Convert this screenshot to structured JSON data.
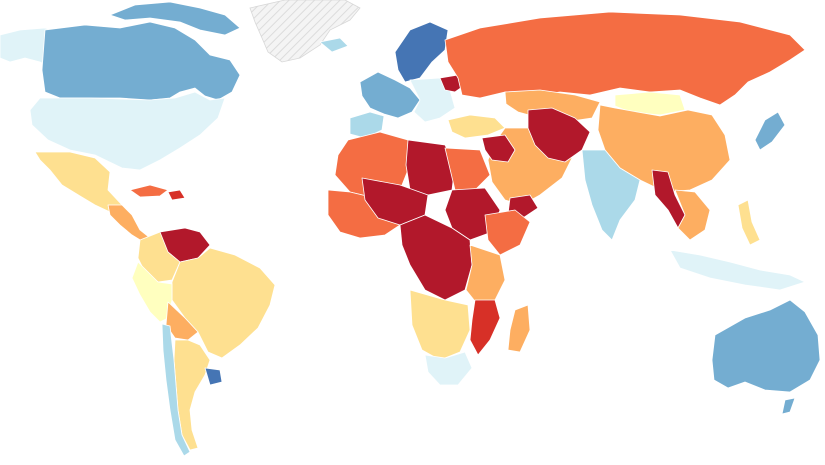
{
  "palette": {
    "c1": "#b2182b",
    "c2": "#d73027",
    "c3": "#f46d43",
    "c4": "#fdae61",
    "c5": "#fee090",
    "c6": "#ffffbf",
    "c7": "#e0f3f8",
    "c8": "#abd9e9",
    "c9": "#74add1",
    "c10": "#4575b4",
    "nodata": "#f2f2f2"
  },
  "regions": [
    {
      "name": "greenland",
      "cat": "nodata"
    },
    {
      "name": "alaska",
      "cat": "c7"
    },
    {
      "name": "canada",
      "cat": "c9"
    },
    {
      "name": "canada-arctic-islands",
      "cat": "c9"
    },
    {
      "name": "united-states",
      "cat": "c7"
    },
    {
      "name": "mexico",
      "cat": "c5"
    },
    {
      "name": "central-america",
      "cat": "c4"
    },
    {
      "name": "cuba",
      "cat": "c3"
    },
    {
      "name": "haiti",
      "cat": "c2"
    },
    {
      "name": "venezuela",
      "cat": "c1"
    },
    {
      "name": "colombia",
      "cat": "c5"
    },
    {
      "name": "brazil",
      "cat": "c5"
    },
    {
      "name": "peru",
      "cat": "c6"
    },
    {
      "name": "bolivia",
      "cat": "c4"
    },
    {
      "name": "argentina",
      "cat": "c5"
    },
    {
      "name": "chile",
      "cat": "c8"
    },
    {
      "name": "uruguay",
      "cat": "c10"
    },
    {
      "name": "iceland",
      "cat": "c8"
    },
    {
      "name": "scandinavia",
      "cat": "c10"
    },
    {
      "name": "western-europe",
      "cat": "c9"
    },
    {
      "name": "iberia",
      "cat": "c8"
    },
    {
      "name": "eastern-europe",
      "cat": "c7"
    },
    {
      "name": "ukraine",
      "cat": "c1"
    },
    {
      "name": "russia",
      "cat": "c3"
    },
    {
      "name": "turkey",
      "cat": "c5"
    },
    {
      "name": "kazakhstan",
      "cat": "c4"
    },
    {
      "name": "mongolia",
      "cat": "c6"
    },
    {
      "name": "china",
      "cat": "c4"
    },
    {
      "name": "middle-east",
      "cat": "c4"
    },
    {
      "name": "syria-iraq",
      "cat": "c1"
    },
    {
      "name": "afghanistan",
      "cat": "c1"
    },
    {
      "name": "yemen",
      "cat": "c1"
    },
    {
      "name": "india",
      "cat": "c8"
    },
    {
      "name": "myanmar",
      "cat": "c1"
    },
    {
      "name": "southeast-asia",
      "cat": "c4"
    },
    {
      "name": "japan",
      "cat": "c9"
    },
    {
      "name": "indonesia",
      "cat": "c7"
    },
    {
      "name": "philippines",
      "cat": "c5"
    },
    {
      "name": "north-africa-west",
      "cat": "c3"
    },
    {
      "name": "libya",
      "cat": "c1"
    },
    {
      "name": "egypt",
      "cat": "c3"
    },
    {
      "name": "west-africa",
      "cat": "c3"
    },
    {
      "name": "mali-niger",
      "cat": "c1"
    },
    {
      "name": "sudan",
      "cat": "c1"
    },
    {
      "name": "ethiopia",
      "cat": "c3"
    },
    {
      "name": "central-africa",
      "cat": "c1"
    },
    {
      "name": "east-africa",
      "cat": "c4"
    },
    {
      "name": "southern-africa",
      "cat": "c5"
    },
    {
      "name": "south-africa",
      "cat": "c7"
    },
    {
      "name": "mozambique",
      "cat": "c2"
    },
    {
      "name": "madagascar",
      "cat": "c4"
    },
    {
      "name": "australia",
      "cat": "c9"
    },
    {
      "name": "new-zealand",
      "cat": "c9"
    }
  ]
}
